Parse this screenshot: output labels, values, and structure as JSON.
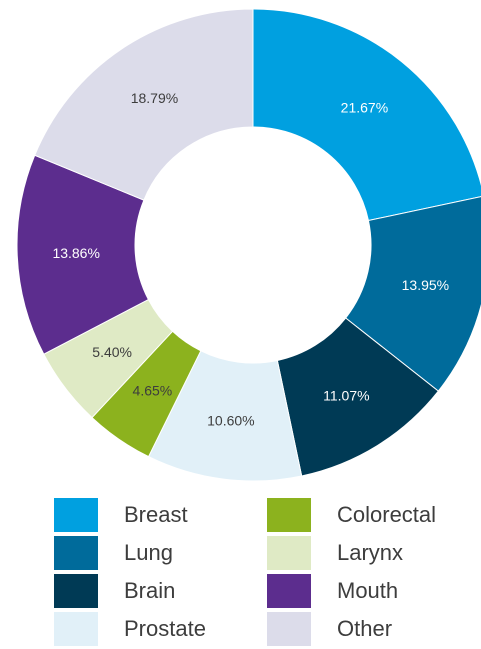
{
  "chart_data": {
    "type": "pie",
    "donut": true,
    "title": "",
    "slices": [
      {
        "label": "Breast",
        "value": 21.67,
        "value_label": "21.67%",
        "color": "#00a0e0",
        "text_color": "#ffffff"
      },
      {
        "label": "Lung",
        "value": 13.95,
        "value_label": "13.95%",
        "color": "#006b9b",
        "text_color": "#ffffff"
      },
      {
        "label": "Brain",
        "value": 11.07,
        "value_label": "11.07%",
        "color": "#003a55",
        "text_color": "#ffffff"
      },
      {
        "label": "Prostate",
        "value": 10.6,
        "value_label": "10.60%",
        "color": "#e1f0f8",
        "text_color": "#3d3d3d"
      },
      {
        "label": "Colorectal",
        "value": 4.65,
        "value_label": "4.65%",
        "color": "#8cb21e",
        "text_color": "#3d3d3d"
      },
      {
        "label": "Larynx",
        "value": 5.4,
        "value_label": "5.40%",
        "color": "#dfeac5",
        "text_color": "#3d3d3d"
      },
      {
        "label": "Mouth",
        "value": 13.86,
        "value_label": "13.86%",
        "color": "#5c2d8e",
        "text_color": "#ffffff"
      },
      {
        "label": "Other",
        "value": 18.79,
        "value_label": "18.79%",
        "color": "#dcdcea",
        "text_color": "#3d3d3d"
      }
    ],
    "legend": {
      "placement": "bottom",
      "columns": [
        [
          "Breast",
          "Lung",
          "Brain",
          "Prostate"
        ],
        [
          "Colorectal",
          "Larynx",
          "Mouth",
          "Other"
        ]
      ]
    }
  }
}
